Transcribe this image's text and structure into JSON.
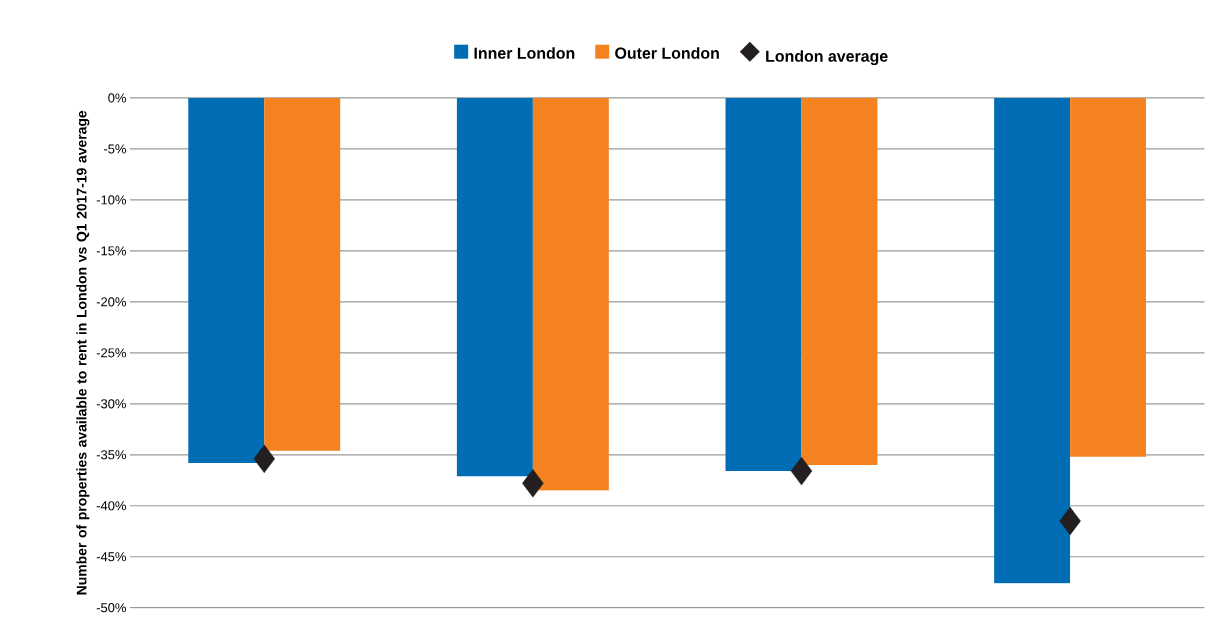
{
  "chart_data": {
    "type": "bar",
    "ylabel": "Number of properties available to rent in London vs Q1 2017-19 average",
    "categories": [
      null,
      null,
      null,
      null
    ],
    "series": [
      {
        "name": "Inner London",
        "color": "#006db5",
        "values": [
          -35.8,
          -37.1,
          -36.6,
          -47.6
        ]
      },
      {
        "name": "Outer London",
        "color": "#f48221",
        "values": [
          -34.6,
          -38.5,
          -36.0,
          -35.2
        ]
      },
      {
        "name": "London average",
        "color": "#231f20",
        "type": "scatter",
        "marker": "diamond",
        "values": [
          -35.4,
          -37.8,
          -36.6,
          -41.5
        ]
      }
    ],
    "ylim": [
      -50,
      0
    ],
    "yticks": [
      {
        "value": 0,
        "label": "0%"
      },
      {
        "value": -5,
        "label": "-5%"
      },
      {
        "value": -10,
        "label": "-10%"
      },
      {
        "value": -15,
        "label": "-15%"
      },
      {
        "value": -20,
        "label": "-20%"
      },
      {
        "value": -25,
        "label": "-25%"
      },
      {
        "value": -30,
        "label": "-30%"
      },
      {
        "value": -35,
        "label": "-35%"
      },
      {
        "value": -40,
        "label": "-40%"
      },
      {
        "value": -45,
        "label": "-45%"
      },
      {
        "value": -50,
        "label": "-50%"
      }
    ],
    "grid": "y",
    "legend": "top",
    "tick_labels": "y"
  }
}
